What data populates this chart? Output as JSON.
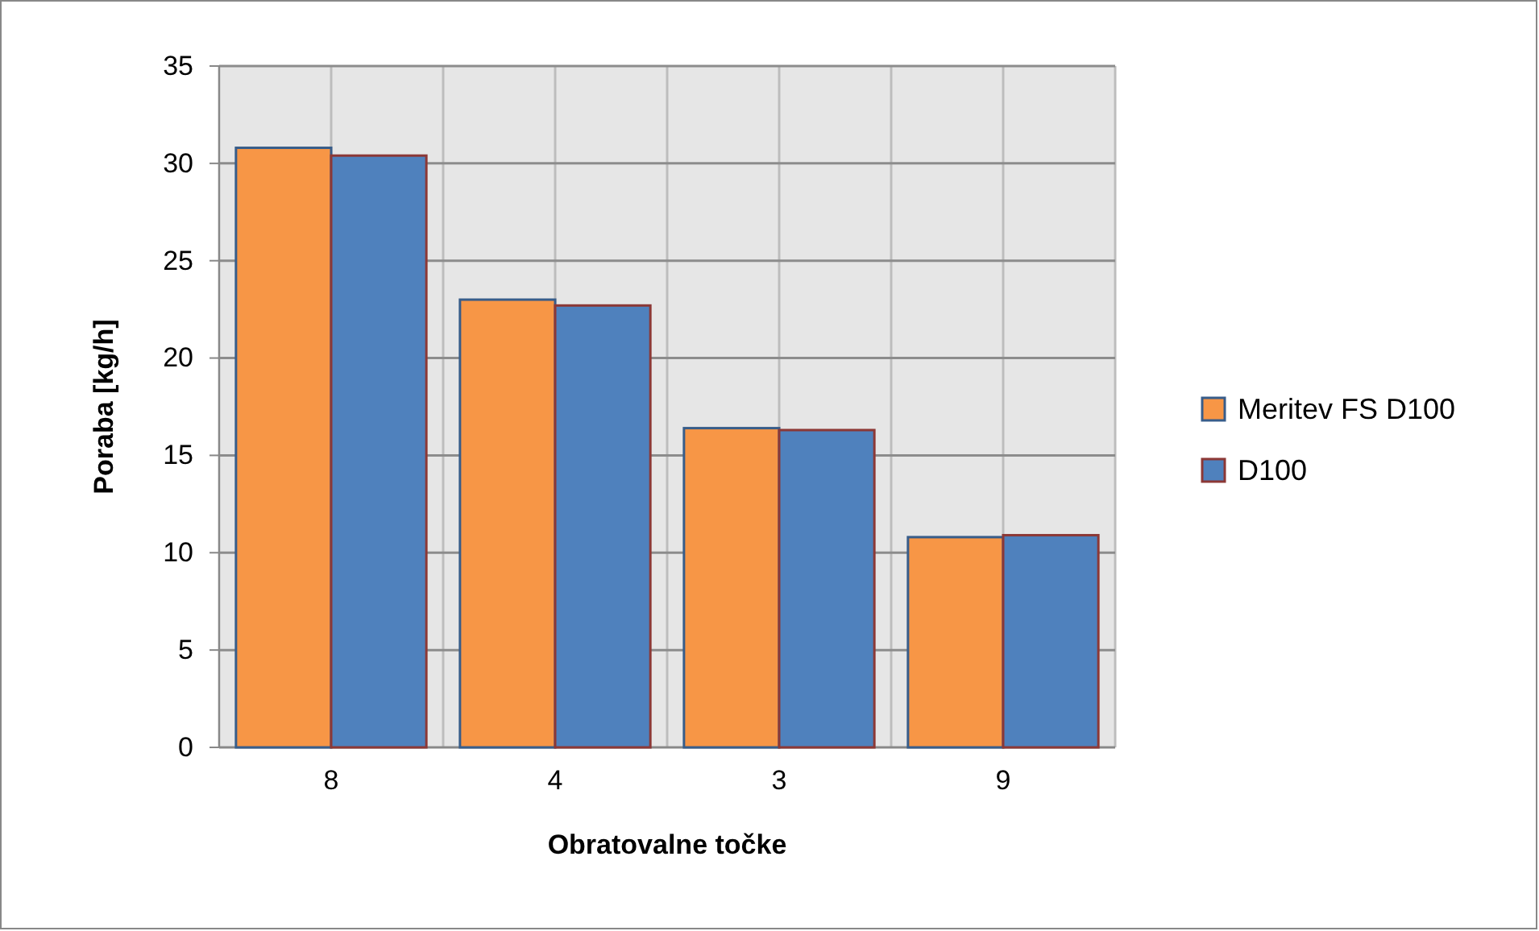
{
  "chart_data": {
    "type": "bar",
    "xlabel": "Obratovalne točke",
    "ylabel": "Poraba [kg/h]",
    "categories": [
      "8",
      "4",
      "3",
      "9"
    ],
    "series": [
      {
        "name": "Meritev FS D100",
        "color": "#f79646",
        "values": [
          30.8,
          23.0,
          16.4,
          10.8
        ]
      },
      {
        "name": "D100",
        "color": "#4f81bd",
        "values": [
          30.4,
          22.7,
          16.3,
          10.9
        ]
      }
    ],
    "ylim": [
      0,
      35
    ],
    "yticks": [
      0,
      5,
      10,
      15,
      20,
      25,
      30,
      35
    ],
    "grid": true,
    "legend": "right"
  }
}
